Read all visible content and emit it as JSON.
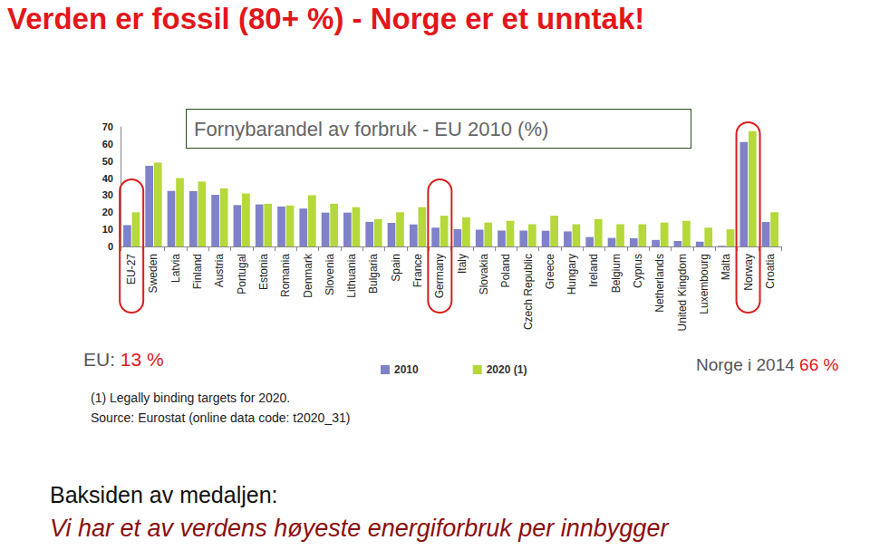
{
  "slide": {
    "title": "Verden er fossil (80+ %) - Norge er et unntak!",
    "footer_heading": "Baksiden av medaljen:",
    "footer_text": "Vi har et av verdens høyeste energiforbruk per innbygger"
  },
  "chart_data": {
    "type": "bar",
    "title": "Fornybarandel av forbruk - EU 2010 (%)",
    "annotations": [
      "EU: 13 %",
      "Norge i 2014 66 %",
      "(1) Legally binding targets for 2020.",
      "Source: Eurostat (online data code: t2020_31)"
    ],
    "categories": [
      "EU-27",
      "Sweden",
      "Latvia",
      "Finland",
      "Austria",
      "Portugal",
      "Estonia",
      "Romania",
      "Denmark",
      "Slovenia",
      "Lithuania",
      "Bulgaria",
      "Spain",
      "France",
      "Germany",
      "Italy",
      "Slovakia",
      "Poland",
      "Czech Republic",
      "Greece",
      "Hungary",
      "Ireland",
      "Belgium",
      "Cyprus",
      "Netherlands",
      "United Kingdom",
      "Luxembourg",
      "Malta",
      "Norway",
      "Croatia"
    ],
    "series": [
      {
        "name": "2010",
        "color": "#7f81c9",
        "values": [
          12.5,
          47.2,
          32.5,
          32.4,
          30.2,
          24.2,
          24.6,
          23.4,
          22.2,
          19.8,
          19.8,
          14.4,
          13.8,
          12.9,
          11.0,
          10.1,
          9.8,
          9.3,
          9.3,
          9.2,
          8.8,
          5.5,
          5.0,
          4.8,
          3.8,
          3.2,
          2.8,
          0.4,
          61.1,
          14.3
        ]
      },
      {
        "name": "2020 (1)",
        "color": "#b5d83a",
        "values": [
          20,
          49,
          40,
          38,
          34,
          31,
          25,
          24,
          30,
          25,
          23,
          16,
          20,
          23,
          18,
          17,
          14,
          15,
          13,
          18,
          13,
          16,
          13,
          13,
          14,
          15,
          11,
          10,
          67.5,
          20
        ]
      }
    ],
    "ylim": [
      0,
      70
    ],
    "yticks": [
      0,
      10,
      20,
      30,
      40,
      50,
      60,
      70
    ],
    "grid": false,
    "legend": "bottom"
  }
}
